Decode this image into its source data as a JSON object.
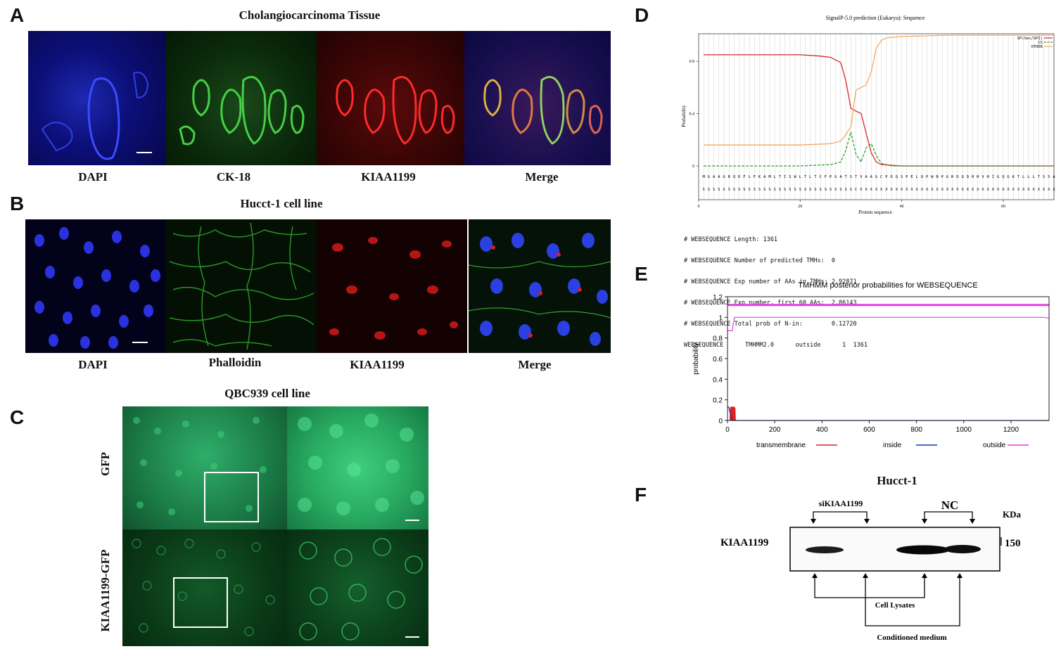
{
  "panels": {
    "A": {
      "letter": "A",
      "title": "Cholangiocarcinoma Tissue",
      "labels": [
        "DAPI",
        "CK-18",
        "KIAA1199",
        "Merge"
      ]
    },
    "B": {
      "letter": "B",
      "title": "Hucct-1 cell line",
      "labels": [
        "DAPI",
        "Phalloidin",
        "KIAA1199",
        "Merge"
      ]
    },
    "C": {
      "letter": "C",
      "title": "QBC939 cell line",
      "row_labels": [
        "GFP",
        "KIAA1199-GFP"
      ]
    },
    "D": {
      "letter": "D",
      "title": "SignalP-5.0 prediction (Eukarya): Sequence",
      "ylabel": "Probability",
      "xlabel": "Protein sequence",
      "legend": [
        "SP(Sec/SPI)",
        "CS",
        "OTHER"
      ],
      "sequence_aa": "MGAAGRQDFLFKAMLTISWLTLTCFPGATSTVAAGCPDQSPELQPWNPGHDQDHHVHIGQGKTLLLTSSA",
      "sequence_pred": "SSSSSSSSSSSSSSSSSSSSSSSSSSSSSSCXXXXXXXXXXXXXXXXXXXXXXXXXXXXXXXXXXXXXXX",
      "tmhmm_text": [
        "# WEBSEQUENCE Length: 1361",
        "# WEBSEQUENCE Number of predicted TMHs:  0",
        "# WEBSEQUENCE Exp number of AAs in TMHs: 2.92871",
        "# WEBSEQUENCE Exp number, first 60 AAs:  2.86143",
        "# WEBSEQUENCE Total prob of N-in:        0.12720",
        "WEBSEQUENCE      TMHMM2.0      outside      1  1361"
      ]
    },
    "E": {
      "letter": "E",
      "title": "TMHMM posterior probabilities for WEBSEQUENCE",
      "ylabel": "probability",
      "legend": [
        "transmembrane",
        "inside",
        "outside"
      ]
    },
    "F": {
      "letter": "F",
      "title": "Hucct-1",
      "group_si": "siKIAA1199",
      "group_nc": "NC",
      "unit": "KDa",
      "band_label": "KIAA1199",
      "mw": "150",
      "cell_lysates": "Cell Lysates",
      "conditioned": "Conditioned medium"
    }
  },
  "chart_data": [
    {
      "type": "line",
      "title": "SignalP-5.0 prediction (Eukarya): Sequence",
      "xlabel": "Protein sequence",
      "ylabel": "Probability",
      "xlim": [
        0,
        70
      ],
      "ylim": [
        0,
        1
      ],
      "x_ticks": [
        0,
        20,
        40,
        60
      ],
      "y_ticks": [
        0,
        0.4,
        0.8
      ],
      "series": [
        {
          "name": "SP(Sec/SPI)",
          "color": "#d62728",
          "x": [
            1,
            10,
            20,
            24,
            26,
            27,
            28,
            29,
            30,
            31,
            32,
            33,
            34,
            35,
            36,
            40,
            50,
            70
          ],
          "y": [
            0.85,
            0.85,
            0.85,
            0.84,
            0.83,
            0.81,
            0.79,
            0.65,
            0.44,
            0.42,
            0.4,
            0.25,
            0.1,
            0.03,
            0.01,
            0.0,
            0.0,
            0.0
          ]
        },
        {
          "name": "CS",
          "color": "#2ca02c",
          "x": [
            1,
            20,
            26,
            28,
            29,
            30,
            31,
            32,
            33,
            34,
            35,
            36,
            38,
            70
          ],
          "y": [
            0.0,
            0.0,
            0.01,
            0.03,
            0.12,
            0.26,
            0.09,
            0.03,
            0.14,
            0.17,
            0.08,
            0.02,
            0.0,
            0.0
          ]
        },
        {
          "name": "OTHER",
          "color": "#f5a860",
          "x": [
            1,
            20,
            26,
            28,
            29,
            30,
            31,
            32,
            33,
            34,
            35,
            36,
            37,
            40,
            50,
            70
          ],
          "y": [
            0.16,
            0.16,
            0.17,
            0.19,
            0.24,
            0.3,
            0.58,
            0.6,
            0.62,
            0.72,
            0.9,
            0.96,
            0.98,
            0.99,
            1.0,
            1.0
          ]
        }
      ]
    },
    {
      "type": "line",
      "title": "TMHMM posterior probabilities for WEBSEQUENCE",
      "ylabel": "probability",
      "xlim": [
        0,
        1361
      ],
      "ylim": [
        0,
        1.2
      ],
      "x_ticks": [
        0,
        200,
        400,
        600,
        800,
        1000,
        1200
      ],
      "y_ticks": [
        0,
        0.2,
        0.4,
        0.6,
        0.8,
        1,
        1.2
      ],
      "series": [
        {
          "name": "transmembrane",
          "color": "#e0201b",
          "x": [
            1,
            10,
            12,
            14,
            28,
            32,
            34,
            1361
          ],
          "y": [
            0,
            0,
            0.12,
            0.13,
            0.13,
            0.12,
            0,
            0
          ]
        },
        {
          "name": "inside",
          "color": "#1a2fd0",
          "x": [
            1,
            5,
            10,
            20,
            1361
          ],
          "y": [
            0.13,
            0.13,
            0.08,
            0.0,
            0.0
          ]
        },
        {
          "name": "outside",
          "color": "#e040e0",
          "x": [
            1,
            20,
            25,
            30,
            1340,
            1361
          ],
          "y": [
            0.87,
            0.87,
            0.95,
            1.0,
            1.0,
            0.99
          ]
        }
      ]
    }
  ]
}
